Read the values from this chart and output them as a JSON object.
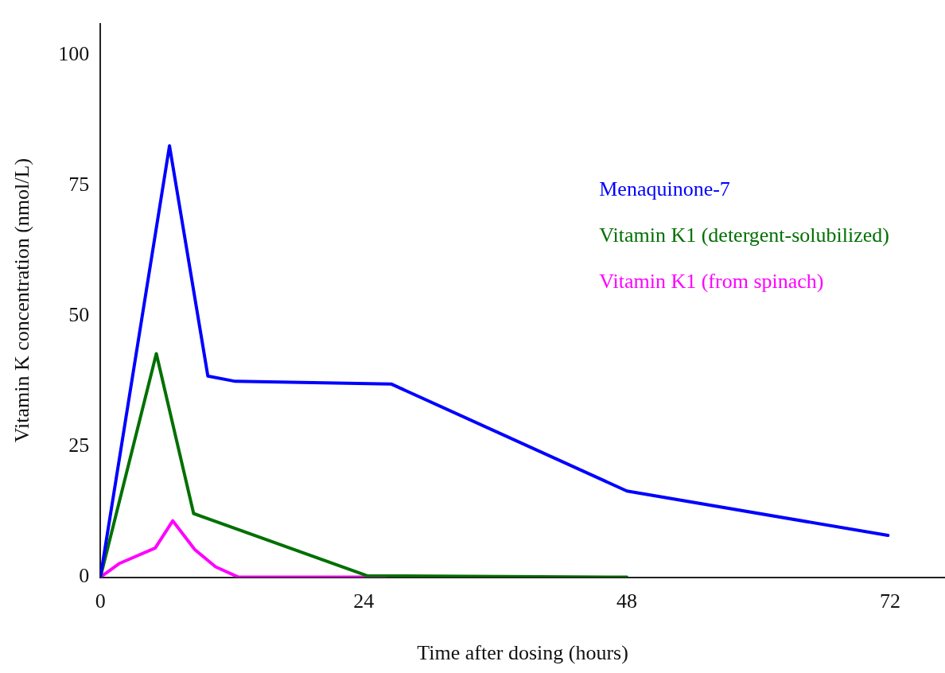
{
  "chart_data": {
    "type": "line",
    "xlabel": "Time after dosing (hours)",
    "ylabel": "Vitamin K concentration (nmol/L)",
    "xlim": [
      0,
      77
    ],
    "xticks": [
      0,
      24,
      48,
      72
    ],
    "ylim": [
      0,
      106
    ],
    "yticks": [
      0,
      25,
      50,
      75,
      100
    ],
    "grid": false,
    "legend": "top right",
    "marker": "none",
    "line_style": "solid",
    "series": [
      {
        "name": "Menaquinone-7",
        "color": "#0000ff",
        "x": [
          0,
          6.3,
          9.8,
          12.3,
          26.5,
          48,
          71.8
        ],
        "values": [
          0,
          82.6,
          38.5,
          37.5,
          37,
          16.5,
          8
        ]
      },
      {
        "name": "Vitamin K1 (detergent-solubilized)",
        "color": "#007000",
        "x": [
          0,
          5.1,
          8.5,
          24.3,
          48
        ],
        "values": [
          0,
          42.8,
          12.2,
          0.3,
          0
        ]
      },
      {
        "name": "Vitamin K1 (from spinach)",
        "color": "#ff00ff",
        "x": [
          0,
          1.7,
          5,
          6.6,
          8.6,
          10.5,
          12.6,
          26
        ],
        "values": [
          0,
          2.6,
          5.6,
          10.8,
          5.3,
          2,
          0,
          0
        ]
      }
    ]
  }
}
